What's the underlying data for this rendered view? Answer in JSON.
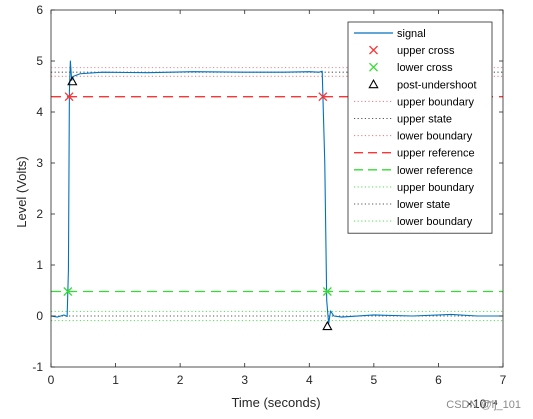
{
  "chart_data": {
    "type": "line",
    "xlabel": "Time (seconds)",
    "ylabel": "Level (Volts)",
    "x_exponent_label": "×10⁻⁴",
    "xlim": [
      0,
      7
    ],
    "ylim": [
      -1,
      6
    ],
    "x_ticks": [
      "0",
      "1",
      "2",
      "3",
      "4",
      "5",
      "6",
      "7"
    ],
    "y_ticks": [
      "-1",
      "0",
      "1",
      "2",
      "3",
      "4",
      "5",
      "6"
    ],
    "x_tick_values": [
      0,
      1,
      2,
      3,
      4,
      5,
      6,
      7
    ],
    "y_tick_values": [
      -1,
      0,
      1,
      2,
      3,
      4,
      5,
      6
    ],
    "legend_placement": "top-right",
    "signal": {
      "name": "signal",
      "color": "#0072bd",
      "x": [
        0,
        0.1,
        0.2,
        0.25,
        0.27,
        0.285,
        0.3,
        0.32,
        0.35,
        0.45,
        0.8,
        1.5,
        2.2,
        3.0,
        3.6,
        4.0,
        4.15,
        4.2,
        4.24,
        4.27,
        4.3,
        4.33,
        4.38,
        4.5,
        5.0,
        5.6,
        6.2,
        6.6,
        7.0
      ],
      "y": [
        0.0,
        -0.02,
        0.02,
        -0.01,
        0.9,
        4.4,
        5.0,
        4.62,
        4.7,
        4.75,
        4.78,
        4.77,
        4.79,
        4.78,
        4.78,
        4.79,
        4.78,
        4.8,
        3.0,
        0.3,
        -0.15,
        0.1,
        0.0,
        -0.02,
        0.02,
        0.0,
        0.03,
        0.0,
        0.0
      ]
    },
    "upper_cross": {
      "name": "upper cross",
      "color": "#ff3333",
      "points": [
        [
          0.28,
          4.3
        ],
        [
          4.21,
          4.3
        ]
      ]
    },
    "lower_cross": {
      "name": "lower cross",
      "color": "#33dd33",
      "points": [
        [
          0.26,
          0.48
        ],
        [
          4.28,
          0.48
        ]
      ]
    },
    "post_undershoot": {
      "name": "post-undershoot",
      "color": "#000000",
      "points": [
        [
          0.33,
          4.6
        ],
        [
          4.28,
          -0.2
        ]
      ]
    },
    "horizontal_lines": [
      {
        "name": "upper boundary",
        "y": 4.87,
        "color": "#e8888a",
        "style": "dotted"
      },
      {
        "name": "upper state",
        "y": 4.78,
        "color": "#555555",
        "style": "dotted"
      },
      {
        "name": "lower boundary",
        "y": 4.7,
        "color": "#e8888a",
        "style": "dotted"
      },
      {
        "name": "upper reference",
        "y": 4.3,
        "color": "#ff3333",
        "style": "dashed"
      },
      {
        "name": "lower reference",
        "y": 0.48,
        "color": "#33dd33",
        "style": "dashed"
      },
      {
        "name": "upper boundary",
        "y": 0.09,
        "color": "#66e066",
        "style": "dotted"
      },
      {
        "name": "lower state",
        "y": 0.0,
        "color": "#555555",
        "style": "dotted"
      },
      {
        "name": "lower boundary",
        "y": -0.09,
        "color": "#66e066",
        "style": "dotted"
      }
    ],
    "legend": [
      {
        "label": "signal",
        "kind": "line-solid",
        "color": "#0072bd"
      },
      {
        "label": "upper cross",
        "kind": "marker-x",
        "color": "#ff3333"
      },
      {
        "label": "lower cross",
        "kind": "marker-x",
        "color": "#33dd33"
      },
      {
        "label": "post-undershoot",
        "kind": "marker-triangle",
        "color": "#000000"
      },
      {
        "label": "upper boundary",
        "kind": "line-dotted",
        "color": "#e8888a"
      },
      {
        "label": "upper state",
        "kind": "line-dotted",
        "color": "#555555"
      },
      {
        "label": "lower boundary",
        "kind": "line-dotted",
        "color": "#e8888a"
      },
      {
        "label": "upper reference",
        "kind": "line-dashed",
        "color": "#ff3333"
      },
      {
        "label": "lower reference",
        "kind": "line-dashed",
        "color": "#33dd33"
      },
      {
        "label": "upper boundary",
        "kind": "line-dotted",
        "color": "#66e066"
      },
      {
        "label": "lower state",
        "kind": "line-dotted",
        "color": "#555555"
      },
      {
        "label": "lower boundary",
        "kind": "line-dotted",
        "color": "#66e066"
      }
    ]
  },
  "watermark": "CSDN @lj_101"
}
